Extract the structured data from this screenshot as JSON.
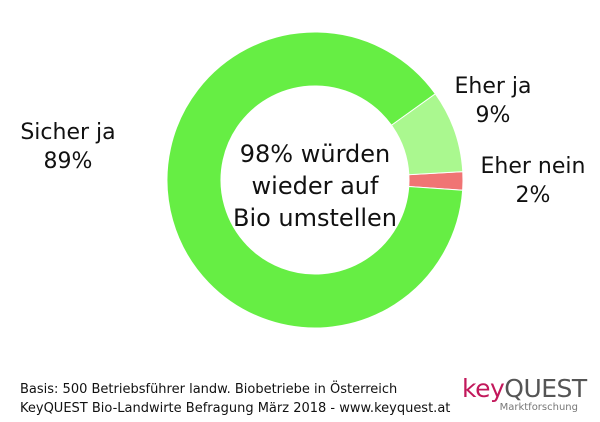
{
  "chart_data": {
    "type": "pie",
    "donut": true,
    "slices": [
      {
        "label": "Sicher ja",
        "value": 89,
        "value_label": "89%",
        "color": "#66ee44"
      },
      {
        "label": "Eher ja",
        "value": 9,
        "value_label": "9%",
        "color": "#aaf88f"
      },
      {
        "label": "Eher nein",
        "value": 2,
        "value_label": "2%",
        "color": "#f07474"
      }
    ],
    "center_text": [
      "98% würden",
      "wieder auf",
      "Bio umstellen"
    ]
  },
  "footer": {
    "line1": "Basis: 500 Betriebsführer landw. Biobetriebe in Österreich",
    "line2": "KeyQUEST Bio-Landwirte Befragung März 2018 - www.keyquest.at"
  },
  "logo": {
    "key": "key",
    "quest": "QUEST",
    "subtitle": "Marktforschung"
  }
}
